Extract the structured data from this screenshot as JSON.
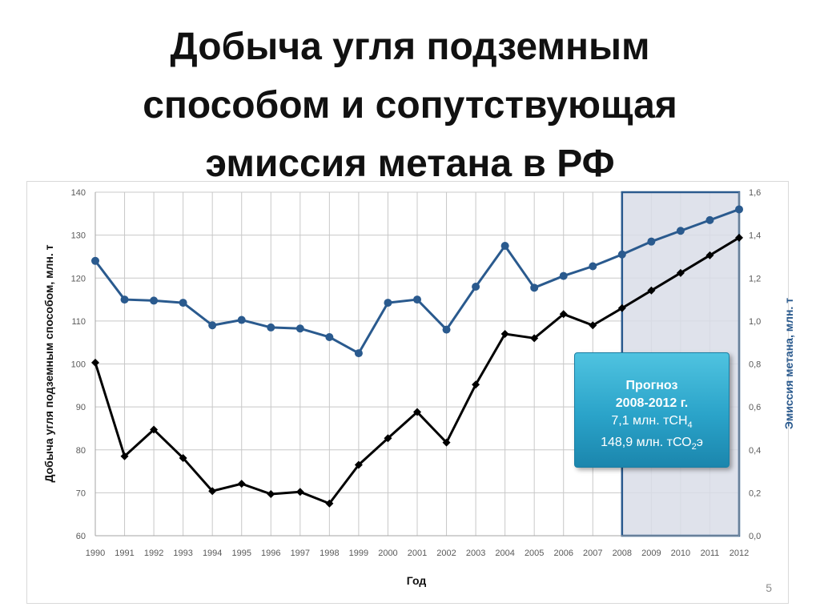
{
  "title_lines": [
    "Добыча угля подземным",
    "способом и сопутствующая",
    "эмиссия метана в РФ"
  ],
  "page_number": "5",
  "forecast_box": {
    "line1": "Прогноз",
    "line2": "2008-2012 г.",
    "line3_prefix": "7,1 млн. тСН",
    "line3_sub": "4",
    "line4_prefix": "148,9 млн. тСО",
    "line4_sub": "2",
    "line4_suffix": "э"
  },
  "colors": {
    "coal": "#000000",
    "methane": "#2a5a8e",
    "forecast_fill": "#d9dde8",
    "forecast_border": "#2a5a8e",
    "grid": "#c8c8c8"
  },
  "chart_data": {
    "type": "line",
    "title": "",
    "xlabel": "Год",
    "ylabel": "Добыча угля подземным способом, млн. т",
    "y2label": "Эмиссия метана, млн. т",
    "x": [
      "1990",
      "1991",
      "1992",
      "1993",
      "1994",
      "1995",
      "1996",
      "1997",
      "1998",
      "1999",
      "2000",
      "2001",
      "2002",
      "2003",
      "2004",
      "2005",
      "2006",
      "2007",
      "2008",
      "2009",
      "2010",
      "2011",
      "2012"
    ],
    "ylim": [
      60,
      140
    ],
    "y2lim": [
      0,
      1.6
    ],
    "y_ticks": [
      "60",
      "70",
      "80",
      "90",
      "100",
      "110",
      "120",
      "130",
      "140"
    ],
    "y2_ticks": [
      "0,0",
      "0,2",
      "0,4",
      "0,6",
      "0,8",
      "1,0",
      "1,2",
      "1,4",
      "1,6"
    ],
    "forecast_range": [
      "2008",
      "2012"
    ],
    "grid": true,
    "series": [
      {
        "axis": "left",
        "marker": "diamond",
        "values": [
          100.3,
          78.5,
          84.7,
          78.1,
          70.4,
          72.1,
          69.7,
          70.2,
          67.5,
          76.5,
          82.7,
          88.8,
          81.7,
          95.2,
          107.0,
          106.0,
          111.6,
          109.0,
          113.0,
          117.1,
          121.2,
          125.3,
          129.4
        ]
      },
      {
        "axis": "right",
        "marker": "circle",
        "values": [
          1.28,
          1.1,
          1.095,
          1.085,
          0.98,
          1.005,
          0.97,
          0.965,
          0.925,
          0.85,
          1.085,
          1.1,
          0.96,
          1.16,
          1.35,
          1.155,
          1.21,
          1.255,
          1.31,
          1.37,
          1.42,
          1.47,
          1.52
        ]
      }
    ]
  }
}
